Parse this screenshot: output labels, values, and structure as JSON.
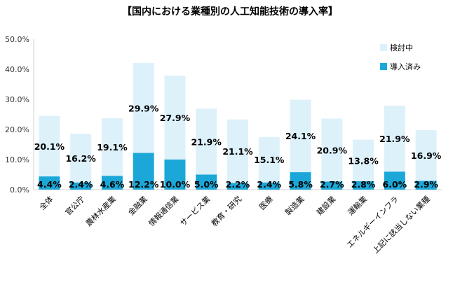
{
  "chart_data": {
    "type": "bar",
    "stacked": true,
    "title": "【国内における業種別の人工知能技術の導入率】",
    "categories": [
      "全体",
      "官公庁",
      "農林水産業",
      "金融業",
      "情報通信業",
      "サービス業",
      "教育・研究",
      "医療",
      "製造業",
      "建設業",
      "運輸業",
      "エネルギーインフラ",
      "上記に該当しない業種"
    ],
    "series": [
      {
        "name": "導入済み",
        "values": [
          4.4,
          2.4,
          4.6,
          12.2,
          10.0,
          5.0,
          2.2,
          2.4,
          5.8,
          2.7,
          2.8,
          6.0,
          2.9
        ],
        "labels": [
          "4.4%",
          "2.4%",
          "4.6%",
          "12.2%",
          "10.0%",
          "5.0%",
          "2.2%",
          "2.4%",
          "5.8%",
          "2.7%",
          "2.8%",
          "6.0%",
          "2.9%"
        ],
        "color": "#1BA8D8"
      },
      {
        "name": "検討中",
        "values": [
          20.1,
          16.2,
          19.1,
          29.9,
          27.9,
          21.9,
          21.1,
          15.1,
          24.1,
          20.9,
          13.8,
          21.9,
          16.9
        ],
        "labels": [
          "20.1%",
          "16.2%",
          "19.1%",
          "29.9%",
          "27.9%",
          "21.9%",
          "21.1%",
          "15.1%",
          "24.1%",
          "20.9%",
          "13.8%",
          "21.9%",
          "16.9%"
        ],
        "color": "#DDF1FA"
      }
    ],
    "ylim": [
      0,
      50
    ],
    "yticks": [
      0,
      10,
      20,
      30,
      40,
      50
    ],
    "ytick_labels": [
      "0.0%",
      "10.0%",
      "20.0%",
      "30.0%",
      "40.0%",
      "50.0%"
    ],
    "legend": {
      "position": "top-right",
      "items": [
        "検討中",
        "導入済み"
      ]
    },
    "grid": false
  }
}
